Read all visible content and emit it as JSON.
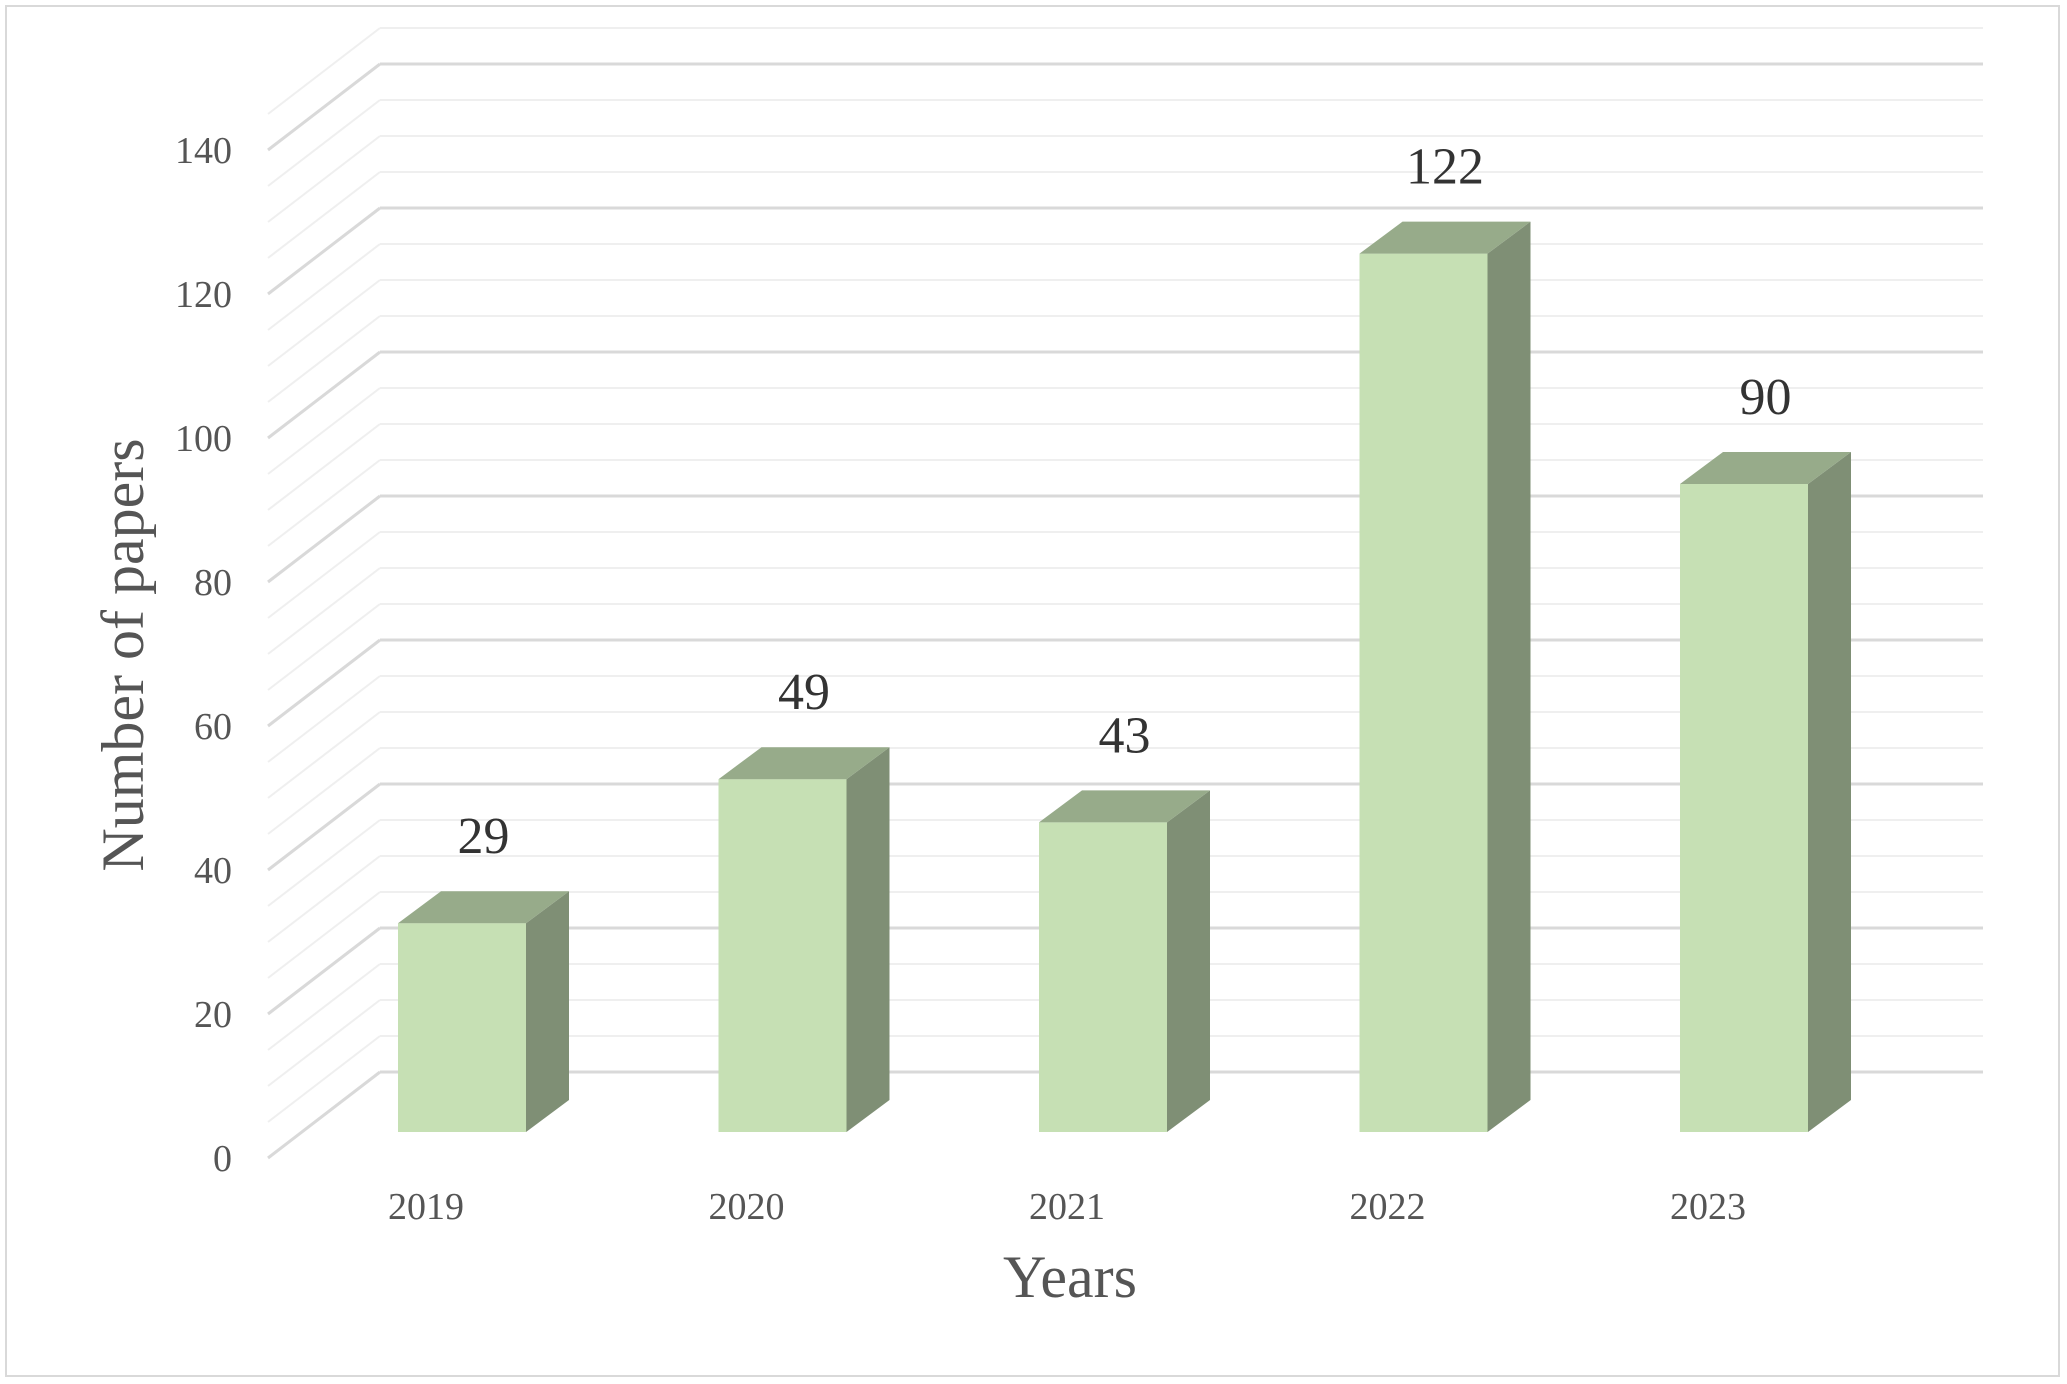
{
  "chart_data": {
    "type": "bar",
    "style": "3d-column",
    "categories": [
      "2019",
      "2020",
      "2021",
      "2022",
      "2023"
    ],
    "values": [
      29,
      49,
      43,
      122,
      90
    ],
    "data_labels": [
      "29",
      "49",
      "43",
      "122",
      "90"
    ],
    "xlabel": "Years",
    "ylabel": "Number of papers",
    "ylim": [
      0,
      148
    ],
    "yticks": [
      "0",
      "20",
      "40",
      "60",
      "80",
      "100",
      "120",
      "140"
    ],
    "grid": true,
    "colors": {
      "bar_front": "#c6e0b4",
      "bar_top": "#97ab8a",
      "bar_side": "#7f8f75",
      "grid_major": "#d9d9d9",
      "grid_minor": "#efefef"
    }
  }
}
